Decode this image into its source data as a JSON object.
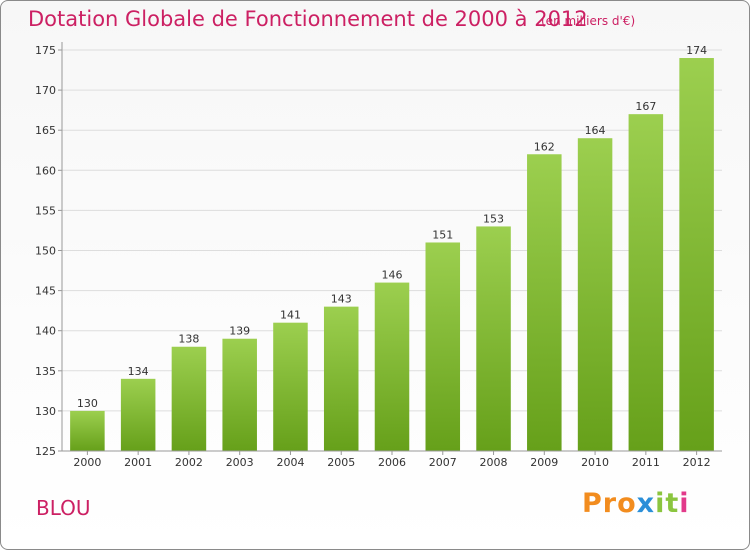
{
  "chart_data": {
    "type": "bar",
    "title": "Dotation Globale de Fonctionnement de 2000 à 2012",
    "subtitle": "(en milliers d'€)",
    "categories": [
      "2000",
      "2001",
      "2002",
      "2003",
      "2004",
      "2005",
      "2006",
      "2007",
      "2008",
      "2009",
      "2010",
      "2011",
      "2012"
    ],
    "values": [
      130,
      134,
      138,
      139,
      141,
      143,
      146,
      151,
      153,
      162,
      164,
      167,
      174
    ],
    "ylim": [
      125,
      175
    ],
    "yticks": [
      125,
      130,
      135,
      140,
      145,
      150,
      155,
      160,
      165,
      170,
      175
    ],
    "grid": true,
    "colors": {
      "bar_top": "#9ccf4f",
      "bar_bottom": "#66a01a",
      "grid": "#dddddd",
      "axis": "#999999"
    }
  },
  "footer": {
    "commune": "BLOU",
    "logo": {
      "p1": "Pro",
      "p2": "x",
      "p3": "it",
      "p4": "i"
    }
  }
}
